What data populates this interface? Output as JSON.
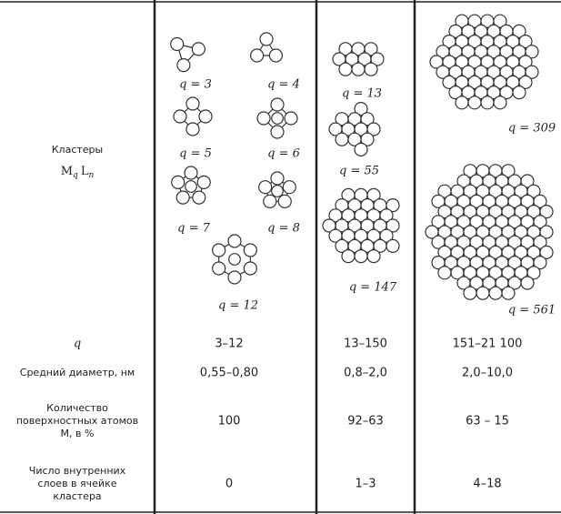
{
  "table": {
    "cluster_row": {
      "header": "Кластеры",
      "formula": {
        "m": "M",
        "m_sub": "q",
        "l": "L",
        "l_sub": "n"
      },
      "labels": [
        "q = 3",
        "q = 4",
        "q = 5",
        "q = 6",
        "q = 7",
        "q = 8",
        "q = 12",
        "q = 13",
        "q = 55",
        "q = 147",
        "q = 309",
        "q = 561"
      ]
    },
    "rows": [
      {
        "header": [
          "q"
        ],
        "cells": [
          "3–12",
          "13–150",
          "151–21 100"
        ]
      },
      {
        "header": [
          "Средний диаметр, нм"
        ],
        "cells": [
          "0,55–0,80",
          "0,8–2,0",
          "2,0–10,0"
        ]
      },
      {
        "header": [
          "Количество",
          "поверхностных атомов",
          "М, в %"
        ],
        "cells": [
          "100",
          "92–63",
          "63 – 15"
        ]
      },
      {
        "header": [
          "Число внутренних",
          "слоев в ячейке",
          "кластера"
        ],
        "cells": [
          "0",
          "1–3",
          "4–18"
        ]
      }
    ]
  }
}
